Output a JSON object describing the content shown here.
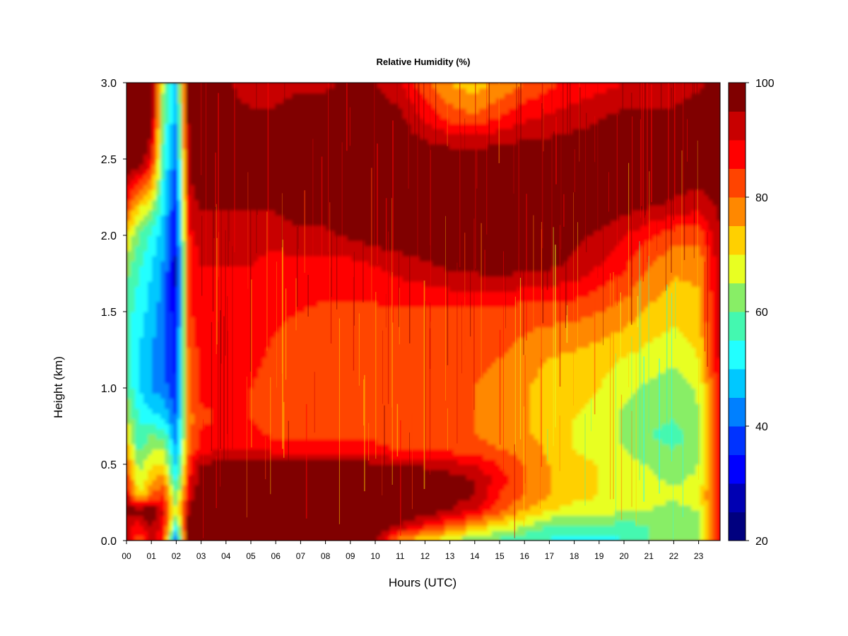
{
  "chart_data": {
    "type": "heatmap",
    "title": "Relative Humidity (%)",
    "xlabel": "Hours (UTC)",
    "ylabel": "Height (km)",
    "x_ticks": [
      "00",
      "01",
      "02",
      "03",
      "04",
      "05",
      "06",
      "07",
      "08",
      "09",
      "10",
      "11",
      "12",
      "13",
      "14",
      "15",
      "16",
      "17",
      "18",
      "19",
      "20",
      "21",
      "22",
      "23"
    ],
    "y_ticks": [
      "0.0",
      "0.5",
      "1.0",
      "1.5",
      "2.0",
      "2.5",
      "3.0"
    ],
    "xlim": [
      0,
      24
    ],
    "ylim": [
      0,
      3
    ],
    "colorbar": {
      "min": 20,
      "max": 100,
      "step": 5,
      "tick_labels": [
        "20",
        "40",
        "60",
        "80",
        "100"
      ],
      "colors": [
        "#00007f",
        "#0000b3",
        "#0000ff",
        "#0033ff",
        "#0080ff",
        "#00c8ff",
        "#22ffff",
        "#44f8b0",
        "#88ee66",
        "#e8ff22",
        "#ffd000",
        "#ff8800",
        "#ff4400",
        "#ff0000",
        "#c80000",
        "#800000"
      ]
    },
    "x_hours": [
      0,
      0.5,
      1,
      1.5,
      2,
      2.5,
      3,
      4,
      5,
      6,
      7,
      8,
      9,
      10,
      11,
      12,
      13,
      14,
      15,
      16,
      17,
      18,
      19,
      20,
      21,
      22,
      23,
      23.8
    ],
    "z_heights_km": [
      0,
      0.1,
      0.2,
      0.3,
      0.4,
      0.5,
      0.6,
      0.7,
      0.8,
      1.0,
      1.2,
      1.5,
      1.8,
      2.0,
      2.2,
      2.5,
      2.8,
      3.0
    ],
    "rh_grid": [
      [
        95,
        80,
        92,
        85,
        38,
        98,
        100,
        100,
        100,
        100,
        100,
        100,
        100,
        95,
        75,
        70,
        65,
        60,
        58,
        55,
        54,
        52,
        52,
        55,
        60,
        62,
        65,
        90
      ],
      [
        90,
        88,
        95,
        88,
        55,
        98,
        100,
        100,
        100,
        100,
        100,
        100,
        100,
        100,
        95,
        88,
        82,
        75,
        70,
        65,
        60,
        60,
        60,
        58,
        60,
        60,
        62,
        88
      ],
      [
        100,
        98,
        100,
        90,
        65,
        96,
        100,
        100,
        100,
        100,
        100,
        100,
        100,
        100,
        100,
        98,
        95,
        90,
        82,
        75,
        70,
        68,
        68,
        65,
        65,
        63,
        65,
        88
      ],
      [
        92,
        70,
        80,
        85,
        60,
        90,
        100,
        100,
        100,
        100,
        100,
        100,
        100,
        100,
        100,
        100,
        98,
        95,
        85,
        80,
        75,
        72,
        70,
        68,
        68,
        66,
        68,
        88
      ],
      [
        85,
        65,
        75,
        78,
        52,
        88,
        98,
        100,
        100,
        100,
        100,
        100,
        100,
        100,
        100,
        100,
        98,
        95,
        88,
        80,
        75,
        72,
        70,
        68,
        66,
        64,
        66,
        88
      ],
      [
        80,
        62,
        70,
        70,
        48,
        85,
        95,
        98,
        98,
        98,
        98,
        98,
        98,
        96,
        94,
        94,
        92,
        90,
        85,
        80,
        75,
        72,
        70,
        66,
        65,
        62,
        65,
        88
      ],
      [
        75,
        58,
        65,
        65,
        45,
        80,
        88,
        90,
        90,
        88,
        88,
        88,
        88,
        86,
        85,
        84,
        84,
        82,
        80,
        78,
        74,
        70,
        68,
        65,
        62,
        60,
        63,
        88
      ],
      [
        70,
        55,
        60,
        58,
        42,
        78,
        86,
        86,
        86,
        84,
        84,
        84,
        84,
        84,
        82,
        82,
        80,
        80,
        78,
        76,
        72,
        70,
        68,
        64,
        60,
        58,
        62,
        88
      ],
      [
        65,
        55,
        52,
        50,
        40,
        78,
        84,
        86,
        85,
        84,
        82,
        82,
        84,
        84,
        82,
        80,
        80,
        80,
        78,
        76,
        72,
        70,
        68,
        64,
        62,
        60,
        64,
        88
      ],
      [
        60,
        50,
        45,
        42,
        36,
        80,
        86,
        86,
        85,
        84,
        82,
        82,
        82,
        82,
        82,
        80,
        80,
        80,
        78,
        76,
        72,
        72,
        70,
        66,
        64,
        62,
        66,
        88
      ],
      [
        58,
        50,
        45,
        40,
        33,
        82,
        86,
        86,
        86,
        84,
        82,
        82,
        82,
        82,
        82,
        82,
        82,
        82,
        80,
        78,
        75,
        74,
        72,
        70,
        68,
        66,
        70,
        90
      ],
      [
        58,
        52,
        48,
        42,
        30,
        84,
        88,
        88,
        88,
        86,
        85,
        84,
        84,
        84,
        84,
        84,
        84,
        84,
        84,
        82,
        82,
        82,
        80,
        78,
        74,
        72,
        74,
        92
      ],
      [
        62,
        56,
        50,
        44,
        28,
        86,
        90,
        90,
        90,
        88,
        88,
        88,
        88,
        90,
        92,
        94,
        96,
        97,
        98,
        97,
        96,
        94,
        90,
        86,
        80,
        76,
        76,
        92
      ],
      [
        70,
        60,
        54,
        46,
        30,
        88,
        92,
        92,
        92,
        92,
        94,
        94,
        96,
        98,
        99,
        100,
        100,
        100,
        100,
        100,
        98,
        96,
        94,
        90,
        86,
        82,
        82,
        94
      ],
      [
        85,
        72,
        66,
        50,
        34,
        92,
        96,
        96,
        96,
        96,
        98,
        98,
        100,
        100,
        100,
        100,
        100,
        100,
        100,
        100,
        100,
        100,
        100,
        98,
        96,
        94,
        92,
        96
      ],
      [
        100,
        100,
        90,
        55,
        40,
        96,
        100,
        100,
        100,
        100,
        100,
        100,
        100,
        100,
        100,
        100,
        100,
        100,
        100,
        100,
        100,
        100,
        100,
        100,
        100,
        100,
        100,
        98
      ],
      [
        100,
        100,
        100,
        60,
        45,
        98,
        100,
        100,
        96,
        96,
        98,
        98,
        100,
        100,
        96,
        88,
        82,
        80,
        84,
        88,
        90,
        92,
        94,
        96,
        96,
        96,
        98,
        98
      ],
      [
        100,
        100,
        100,
        62,
        48,
        98,
        100,
        96,
        90,
        92,
        94,
        94,
        96,
        95,
        90,
        82,
        75,
        72,
        76,
        80,
        84,
        86,
        88,
        90,
        90,
        92,
        94,
        98
      ]
    ]
  }
}
